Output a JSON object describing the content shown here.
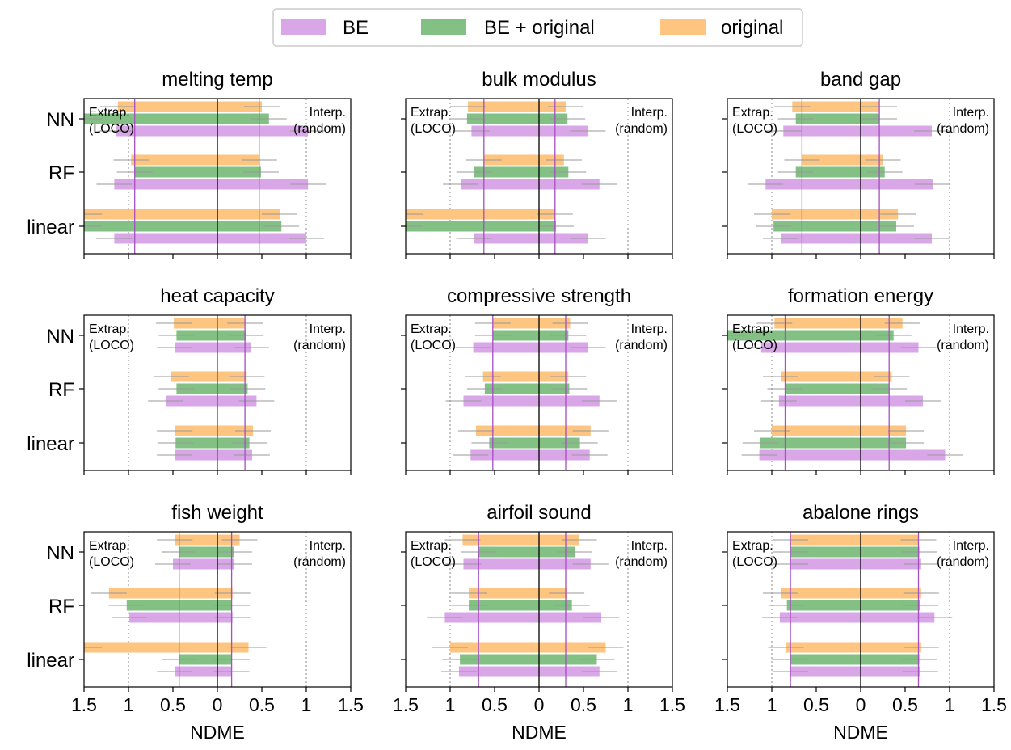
{
  "legend": {
    "items": [
      {
        "label": "BE",
        "color": "#d9a6e8"
      },
      {
        "label": "BE + original",
        "color": "#82c084"
      },
      {
        "label": "original",
        "color": "#fdc580"
      }
    ]
  },
  "annotations": {
    "extrap_line1": "Extrap.",
    "extrap_line2": "(LOCO)",
    "interp_line1": "Interp.",
    "interp_line2": "(random)"
  },
  "axis": {
    "xlabel": "NDME",
    "xlim": [
      -1.5,
      1.5
    ],
    "tick_values": [
      -1.5,
      -1,
      -0.5,
      0,
      0.5,
      1,
      1.5
    ],
    "tick_labels": [
      "1.5",
      "1",
      "0.5",
      "0",
      "0.5",
      "1",
      "1.5"
    ],
    "model_labels": [
      "NN",
      "RF",
      "linear"
    ],
    "grid_lines": [
      -1,
      1
    ]
  },
  "colors": {
    "be": "#d9a6e8",
    "be_original": "#82c084",
    "original": "#fdc580",
    "vline": "#a64fc0",
    "errorbar": "#999999"
  },
  "chart_data": [
    {
      "type": "bar",
      "title": "melting temp",
      "vlines": [
        -0.93,
        0.47
      ],
      "models": [
        "NN",
        "RF",
        "linear"
      ],
      "series": [
        {
          "name": "original",
          "values": [
            [
              -1.12,
              0.5
            ],
            [
              -0.97,
              0.47
            ],
            [
              -1.5,
              0.7
            ]
          ]
        },
        {
          "name": "BE + original",
          "values": [
            [
              -1.5,
              0.58
            ],
            [
              -0.93,
              0.49
            ],
            [
              -1.5,
              0.72
            ]
          ]
        },
        {
          "name": "BE",
          "values": [
            [
              -1.14,
              1.02
            ],
            [
              -1.16,
              1.02
            ],
            [
              -1.16,
              1.0
            ]
          ]
        }
      ]
    },
    {
      "type": "bar",
      "title": "bulk modulus",
      "vlines": [
        -0.62,
        0.18
      ],
      "models": [
        "NN",
        "RF",
        "linear"
      ],
      "series": [
        {
          "name": "original",
          "values": [
            [
              -0.8,
              0.3
            ],
            [
              -0.62,
              0.28
            ],
            [
              -1.5,
              0.18
            ]
          ]
        },
        {
          "name": "BE + original",
          "values": [
            [
              -0.81,
              0.32
            ],
            [
              -0.73,
              0.33
            ],
            [
              -1.5,
              0.19
            ]
          ]
        },
        {
          "name": "BE",
          "values": [
            [
              -0.76,
              0.55
            ],
            [
              -0.88,
              0.68
            ],
            [
              -0.73,
              0.55
            ]
          ]
        }
      ]
    },
    {
      "type": "bar",
      "title": "band gap",
      "vlines": [
        -0.66,
        0.21
      ],
      "models": [
        "NN",
        "RF",
        "linear"
      ],
      "series": [
        {
          "name": "original",
          "values": [
            [
              -0.77,
              0.21
            ],
            [
              -0.66,
              0.25
            ],
            [
              -1.0,
              0.42
            ]
          ]
        },
        {
          "name": "BE + original",
          "values": [
            [
              -0.73,
              0.21
            ],
            [
              -0.73,
              0.27
            ],
            [
              -0.98,
              0.4
            ]
          ]
        },
        {
          "name": "BE",
          "values": [
            [
              -0.87,
              0.8
            ],
            [
              -1.07,
              0.81
            ],
            [
              -0.9,
              0.8
            ]
          ]
        }
      ]
    },
    {
      "type": "bar",
      "title": "heat capacity",
      "vlines": [
        0,
        0.31
      ],
      "models": [
        "NN",
        "RF",
        "linear"
      ],
      "series": [
        {
          "name": "original",
          "values": [
            [
              -0.49,
              0.31
            ],
            [
              -0.52,
              0.33
            ],
            [
              -0.48,
              0.4
            ]
          ]
        },
        {
          "name": "BE + original",
          "values": [
            [
              -0.46,
              0.32
            ],
            [
              -0.46,
              0.34
            ],
            [
              -0.47,
              0.36
            ]
          ]
        },
        {
          "name": "BE",
          "values": [
            [
              -0.48,
              0.38
            ],
            [
              -0.58,
              0.44
            ],
            [
              -0.48,
              0.39
            ]
          ]
        }
      ]
    },
    {
      "type": "bar",
      "title": "compressive strength",
      "vlines": [
        -0.52,
        0.3
      ],
      "models": [
        "NN",
        "RF",
        "linear"
      ],
      "series": [
        {
          "name": "original",
          "values": [
            [
              -0.52,
              0.35
            ],
            [
              -0.63,
              0.33
            ],
            [
              -0.71,
              0.58
            ]
          ]
        },
        {
          "name": "BE + original",
          "values": [
            [
              -0.52,
              0.33
            ],
            [
              -0.61,
              0.34
            ],
            [
              -0.56,
              0.46
            ]
          ]
        },
        {
          "name": "BE",
          "values": [
            [
              -0.74,
              0.55
            ],
            [
              -0.85,
              0.68
            ],
            [
              -0.77,
              0.57
            ]
          ]
        }
      ]
    },
    {
      "type": "bar",
      "title": "formation energy",
      "vlines": [
        -0.85,
        0.32
      ],
      "models": [
        "NN",
        "RF",
        "linear"
      ],
      "series": [
        {
          "name": "original",
          "values": [
            [
              -0.97,
              0.47
            ],
            [
              -0.9,
              0.35
            ],
            [
              -1.0,
              0.51
            ]
          ]
        },
        {
          "name": "BE + original",
          "values": [
            [
              -1.5,
              0.37
            ],
            [
              -0.85,
              0.32
            ],
            [
              -1.13,
              0.51
            ]
          ]
        },
        {
          "name": "BE",
          "values": [
            [
              -1.12,
              0.65
            ],
            [
              -0.92,
              0.7
            ],
            [
              -1.14,
              0.95
            ]
          ]
        }
      ]
    },
    {
      "type": "bar",
      "title": "fish weight",
      "vlines": [
        -0.43,
        0.16
      ],
      "models": [
        "NN",
        "RF",
        "linear"
      ],
      "series": [
        {
          "name": "original",
          "values": [
            [
              -0.48,
              0.25
            ],
            [
              -1.22,
              0.17
            ],
            [
              -1.5,
              0.35
            ]
          ]
        },
        {
          "name": "BE + original",
          "values": [
            [
              -0.43,
              0.19
            ],
            [
              -1.02,
              0.16
            ],
            [
              -0.43,
              0.16
            ]
          ]
        },
        {
          "name": "BE",
          "values": [
            [
              -0.5,
              0.19
            ],
            [
              -0.99,
              0.17
            ],
            [
              -0.48,
              0.16
            ]
          ]
        }
      ]
    },
    {
      "type": "bar",
      "title": "airfoil sound",
      "vlines": [
        -0.68,
        0.3
      ],
      "models": [
        "NN",
        "RF",
        "linear"
      ],
      "series": [
        {
          "name": "original",
          "values": [
            [
              -0.86,
              0.45
            ],
            [
              -0.79,
              0.31
            ],
            [
              -1.0,
              0.75
            ]
          ]
        },
        {
          "name": "BE + original",
          "values": [
            [
              -0.68,
              0.4
            ],
            [
              -0.79,
              0.37
            ],
            [
              -0.89,
              0.65
            ]
          ]
        },
        {
          "name": "BE",
          "values": [
            [
              -0.85,
              0.58
            ],
            [
              -1.06,
              0.7
            ],
            [
              -0.9,
              0.68
            ]
          ]
        }
      ]
    },
    {
      "type": "bar",
      "title": "abalone rings",
      "vlines": [
        -0.79,
        0.65
      ],
      "models": [
        "NN",
        "RF",
        "linear"
      ],
      "series": [
        {
          "name": "original",
          "values": [
            [
              -0.79,
              0.65
            ],
            [
              -0.9,
              0.68
            ],
            [
              -0.84,
              0.68
            ]
          ]
        },
        {
          "name": "BE + original",
          "values": [
            [
              -0.79,
              0.66
            ],
            [
              -0.83,
              0.67
            ],
            [
              -0.8,
              0.66
            ]
          ]
        },
        {
          "name": "BE",
          "values": [
            [
              -0.79,
              0.68
            ],
            [
              -0.91,
              0.83
            ],
            [
              -0.79,
              0.67
            ]
          ]
        }
      ]
    }
  ]
}
